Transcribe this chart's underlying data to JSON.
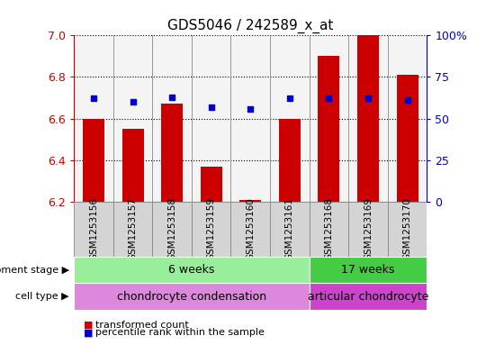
{
  "title": "GDS5046 / 242589_x_at",
  "samples": [
    "GSM1253156",
    "GSM1253157",
    "GSM1253158",
    "GSM1253159",
    "GSM1253160",
    "GSM1253161",
    "GSM1253168",
    "GSM1253169",
    "GSM1253170"
  ],
  "transformed_count": [
    6.6,
    6.55,
    6.67,
    6.37,
    6.21,
    6.6,
    6.9,
    7.0,
    6.81
  ],
  "percentile_rank": [
    62,
    60,
    63,
    57,
    56,
    62,
    62,
    62,
    61
  ],
  "y_min": 6.2,
  "y_max": 7.0,
  "y_ticks": [
    6.2,
    6.4,
    6.6,
    6.8,
    7.0
  ],
  "y2_ticks": [
    0,
    25,
    50,
    75,
    100
  ],
  "y2_tick_labels": [
    "0",
    "25",
    "50",
    "75",
    "100%"
  ],
  "bar_color": "#cc0000",
  "dot_color": "#0000cc",
  "bar_width": 0.55,
  "groups": [
    {
      "label": "6 weeks",
      "start": 0,
      "end": 5,
      "color": "#99ee99"
    },
    {
      "label": "17 weeks",
      "start": 6,
      "end": 8,
      "color": "#44cc44"
    }
  ],
  "cell_types": [
    {
      "label": "chondrocyte condensation",
      "start": 0,
      "end": 5,
      "color": "#dd88dd"
    },
    {
      "label": "articular chondrocyte",
      "start": 6,
      "end": 8,
      "color": "#cc44cc"
    }
  ],
  "dev_stage_label": "development stage",
  "cell_type_label": "cell type",
  "legend_bar_label": "transformed count",
  "legend_dot_label": "percentile rank within the sample",
  "axis_color_left": "#cc0000",
  "axis_color_right": "#0000cc",
  "sample_col_color": "#d4d4d4",
  "border_color": "#888888"
}
